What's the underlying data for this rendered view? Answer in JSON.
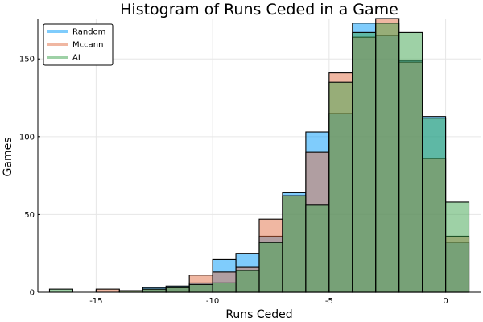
{
  "chart_data": {
    "type": "bar",
    "title": "Histogram of Runs Ceded in a Game",
    "xlabel": "Runs Ceded",
    "ylabel": "Games",
    "xlim": [
      -17.5,
      1.5
    ],
    "ylim": [
      0,
      176
    ],
    "xticks": [
      -15,
      -10,
      -5,
      0
    ],
    "xtick_labels": [
      "-15",
      "-10",
      "-5",
      "0"
    ],
    "yticks": [
      0,
      50,
      100,
      150
    ],
    "ytick_labels": [
      "0",
      "50",
      "100",
      "150"
    ],
    "grid": true,
    "legend_position": "top-left",
    "bin_width": 1,
    "bins": [
      -17,
      -16,
      -15,
      -14,
      -13,
      -12,
      -11,
      -10,
      -9,
      -8,
      -7,
      -6,
      -5,
      -4,
      -3,
      -2,
      -1,
      0
    ],
    "series": [
      {
        "name": "Random",
        "color": "#009AFA",
        "values": [
          0,
          0,
          0,
          0,
          3,
          4,
          6,
          21,
          25,
          36,
          64,
          103,
          115,
          173,
          165,
          149,
          113,
          32
        ]
      },
      {
        "name": "Mccann",
        "color": "#E26F46",
        "values": [
          0,
          0,
          2,
          1,
          2,
          3,
          11,
          13,
          16,
          47,
          62,
          90,
          141,
          164,
          176,
          148,
          86,
          36
        ]
      },
      {
        "name": "AI",
        "color": "#3DA44D",
        "values": [
          2,
          0,
          0,
          1,
          2,
          3,
          5,
          6,
          14,
          32,
          62,
          56,
          135,
          167,
          173,
          167,
          112,
          58
        ]
      }
    ]
  }
}
